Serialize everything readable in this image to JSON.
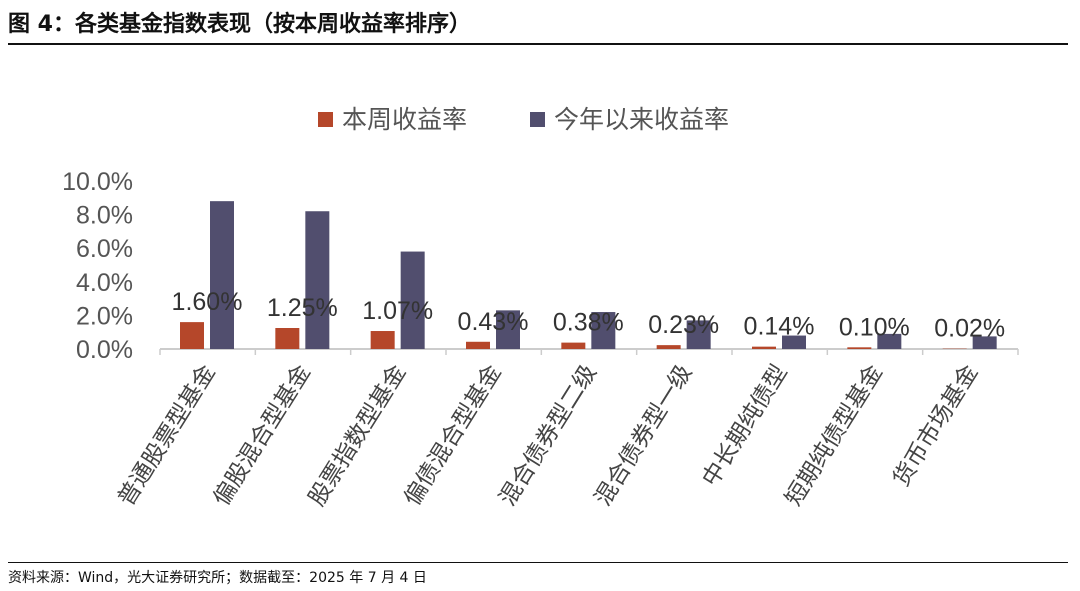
{
  "title": "图 4：各类基金指数表现（按本周收益率排序）",
  "source": "资料来源：Wind，光大证券研究所；数据截至：2025 年 7 月 4 日",
  "chart_data": {
    "type": "bar",
    "categories": [
      "普通股票型基金",
      "偏股混合型基金",
      "股票指数型基金",
      "偏债混合型基金",
      "混合债券型二级",
      "混合债券型一级",
      "中长期纯债型",
      "短期纯债型基金",
      "货币市场基金"
    ],
    "series": [
      {
        "name": "本周收益率",
        "color": "#B5472A",
        "values": [
          1.6,
          1.25,
          1.07,
          0.43,
          0.38,
          0.23,
          0.14,
          0.1,
          0.02
        ],
        "labels": [
          "1.60%",
          "1.25%",
          "1.07%",
          "0.43%",
          "0.38%",
          "0.23%",
          "0.14%",
          "0.10%",
          "0.02%"
        ]
      },
      {
        "name": "今年以来收益率",
        "color": "#514E6E",
        "values": [
          8.8,
          8.2,
          5.8,
          2.3,
          2.2,
          1.7,
          0.8,
          0.9,
          0.75
        ]
      }
    ],
    "yticks": [
      "0.0%",
      "2.0%",
      "4.0%",
      "6.0%",
      "8.0%",
      "10.0%"
    ],
    "ylim": [
      0,
      10
    ],
    "legend": "top",
    "grid": false
  }
}
